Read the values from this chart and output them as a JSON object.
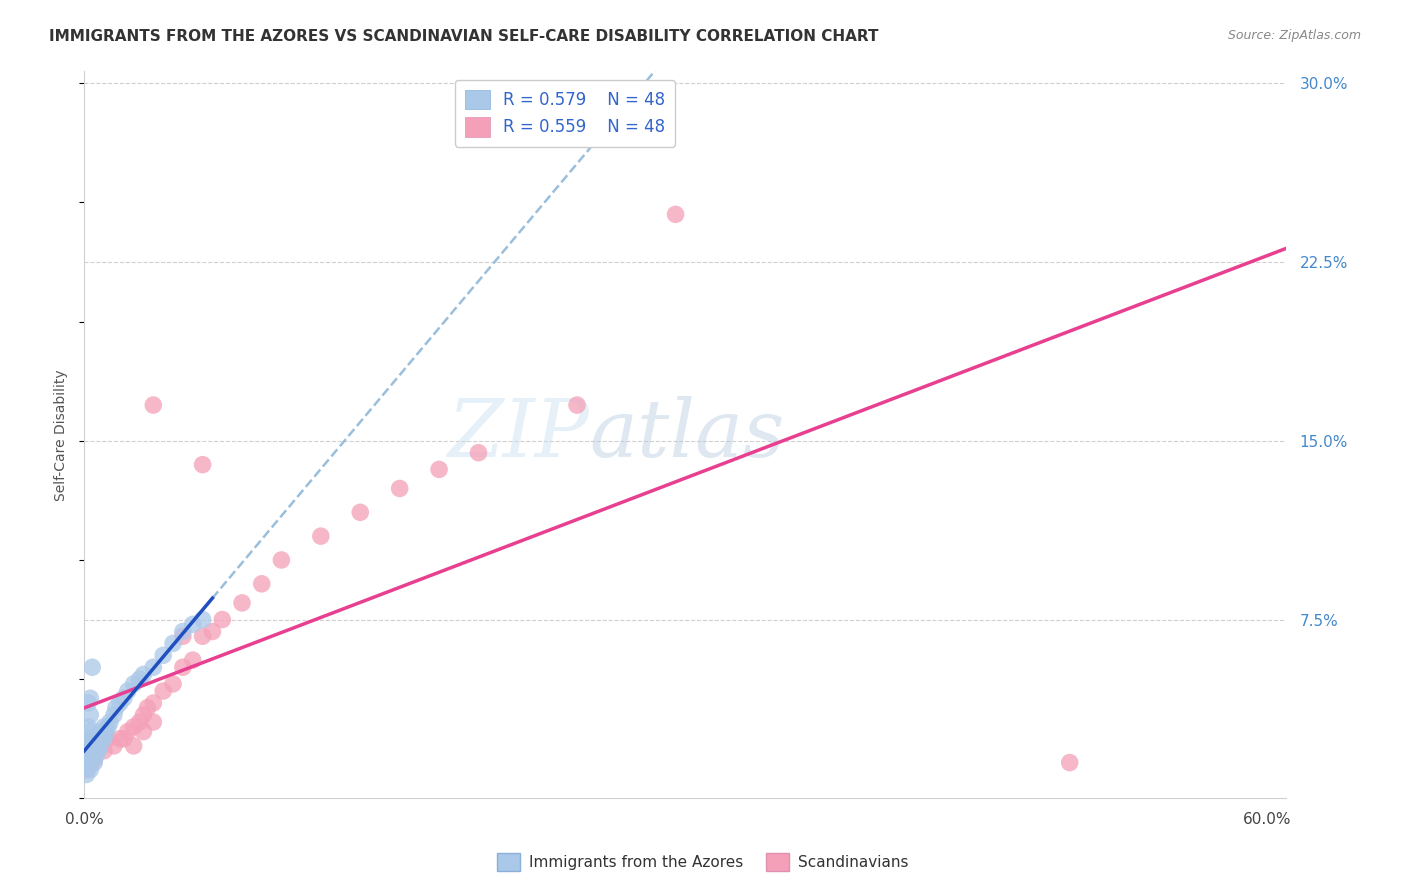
{
  "title": "IMMIGRANTS FROM THE AZORES VS SCANDINAVIAN SELF-CARE DISABILITY CORRELATION CHART",
  "source": "Source: ZipAtlas.com",
  "ylabel": "Self-Care Disability",
  "xlim": [
    0.0,
    0.61
  ],
  "ylim": [
    0.0,
    0.305
  ],
  "blue_color": "#aac8e8",
  "pink_color": "#f4a0b8",
  "blue_line_color": "#2050c0",
  "pink_line_color": "#e84090",
  "blue_dash_color": "#90b8d8",
  "legend_label_blue": "Immigrants from the Azores",
  "legend_label_pink": "Scandinavians",
  "watermark": "ZIPatlas",
  "blue_scatter_x": [
    0.001,
    0.001,
    0.001,
    0.002,
    0.002,
    0.002,
    0.002,
    0.002,
    0.003,
    0.003,
    0.003,
    0.003,
    0.003,
    0.004,
    0.004,
    0.005,
    0.005,
    0.005,
    0.006,
    0.006,
    0.007,
    0.007,
    0.008,
    0.008,
    0.009,
    0.01,
    0.01,
    0.011,
    0.012,
    0.013,
    0.015,
    0.016,
    0.018,
    0.02,
    0.022,
    0.025,
    0.028,
    0.03,
    0.035,
    0.04,
    0.045,
    0.05,
    0.055,
    0.06,
    0.002,
    0.003,
    0.003,
    0.004
  ],
  "blue_scatter_y": [
    0.01,
    0.015,
    0.02,
    0.013,
    0.018,
    0.022,
    0.025,
    0.03,
    0.012,
    0.016,
    0.02,
    0.024,
    0.028,
    0.018,
    0.022,
    0.015,
    0.02,
    0.025,
    0.018,
    0.022,
    0.02,
    0.025,
    0.022,
    0.028,
    0.025,
    0.025,
    0.03,
    0.028,
    0.03,
    0.032,
    0.035,
    0.038,
    0.04,
    0.042,
    0.045,
    0.048,
    0.05,
    0.052,
    0.055,
    0.06,
    0.065,
    0.07,
    0.073,
    0.075,
    0.04,
    0.035,
    0.042,
    0.055
  ],
  "pink_scatter_x": [
    0.001,
    0.001,
    0.002,
    0.002,
    0.003,
    0.003,
    0.004,
    0.004,
    0.005,
    0.005,
    0.006,
    0.007,
    0.008,
    0.01,
    0.012,
    0.015,
    0.018,
    0.02,
    0.022,
    0.025,
    0.025,
    0.028,
    0.03,
    0.03,
    0.032,
    0.035,
    0.035,
    0.04,
    0.045,
    0.05,
    0.055,
    0.06,
    0.065,
    0.07,
    0.08,
    0.09,
    0.1,
    0.12,
    0.14,
    0.16,
    0.18,
    0.2,
    0.25,
    0.3,
    0.035,
    0.05,
    0.06,
    0.5
  ],
  "pink_scatter_y": [
    0.012,
    0.018,
    0.015,
    0.022,
    0.014,
    0.02,
    0.018,
    0.024,
    0.016,
    0.022,
    0.02,
    0.022,
    0.025,
    0.02,
    0.025,
    0.022,
    0.025,
    0.025,
    0.028,
    0.022,
    0.03,
    0.032,
    0.028,
    0.035,
    0.038,
    0.032,
    0.04,
    0.045,
    0.048,
    0.055,
    0.058,
    0.068,
    0.07,
    0.075,
    0.082,
    0.09,
    0.1,
    0.11,
    0.12,
    0.13,
    0.138,
    0.145,
    0.165,
    0.245,
    0.165,
    0.068,
    0.14,
    0.015
  ],
  "background_color": "#ffffff",
  "grid_color": "#d0d0d0"
}
